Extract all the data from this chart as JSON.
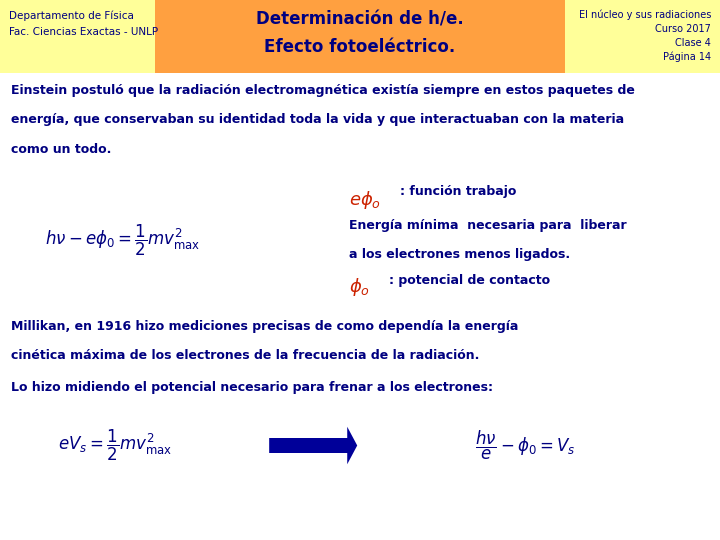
{
  "bg_color": "#ffffff",
  "header_bg": "#FFA040",
  "header_side_bg": "#FFFF99",
  "header_left_line1": "Departamento de Física",
  "header_left_line2": "Fac. Ciencias Exactas - UNLP",
  "header_center_line1": "Determinación de h/e.",
  "header_center_line2": "Efecto fotoeléctrico.",
  "header_right_line1": "El núcleo y sus radiaciones",
  "header_right_line2": "Curso 2017",
  "header_right_line3": "Clase 4",
  "header_right_line4": "Página 14",
  "text_color_dark": "#000080",
  "text_color_red": "#cc2200",
  "header_text_color": "#000080",
  "para1_line1": "Einstein postuló que la radiación electromagnética existía siempre en estos paquetes de",
  "para1_line2": "energía, que conservaban su identidad toda la vida y que interactuaban con la materia",
  "para1_line3": "como un todo.",
  "para2_line1": "Millikan, en 1916 hizo mediciones precisas de como dependía la energía",
  "para2_line2": "cinética máxima de los electrones de la frecuencia de la radiación.",
  "para3": "Lo hizo midiendo el potencial necesario para frenar a los electrones:",
  "formula1": "$h\\nu - e\\phi_0 = \\dfrac{1}{2}mv^2_{\\mathrm{max}}$",
  "formula2": "$eV_s = \\dfrac{1}{2}mv^2_{\\mathrm{max}}$",
  "formula3": "$\\dfrac{h\\nu}{e} - \\phi_0 = V_s$",
  "label_ephi": "$e\\phi_o$",
  "label_func_trabajo": ": función trabajo",
  "label_energia_1": "Energía mínima  necesaria para  liberar",
  "label_energia_2": "a los electrones menos ligados.",
  "label_phi": "$\\phi_o$",
  "label_potencial": ": potencial de contacto"
}
